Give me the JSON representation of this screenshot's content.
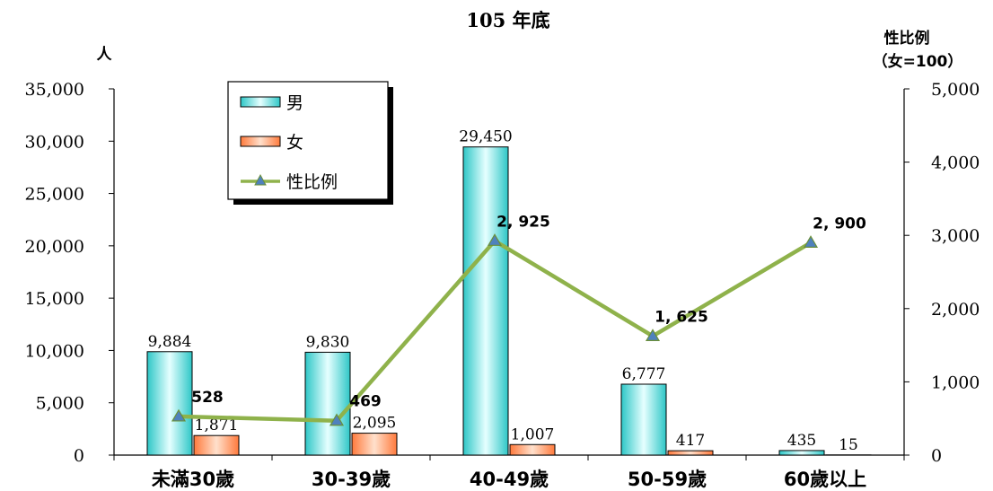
{
  "chart_data": {
    "type": "bar",
    "title": "105 年底",
    "ylabel_left": "人",
    "ylabel_right_line1": "性比例",
    "ylabel_right_line2": "（女=100）",
    "categories": [
      "未滿30歲",
      "30-39歲",
      "40-49歲",
      "50-59歲",
      "60歲以上"
    ],
    "series": [
      {
        "name": "男",
        "type": "bar",
        "axis": "left",
        "values": [
          9884,
          9830,
          29450,
          6777,
          435
        ],
        "labels": [
          "9,884",
          "9,830",
          "29,450",
          "6,777",
          "435"
        ],
        "color": "#66e0e0"
      },
      {
        "name": "女",
        "type": "bar",
        "axis": "left",
        "values": [
          1871,
          2095,
          1007,
          417,
          15
        ],
        "labels": [
          "1,871",
          "2,095",
          "1,007",
          "417",
          "15"
        ],
        "color": "#ff9966"
      },
      {
        "name": "性比例",
        "type": "line",
        "axis": "right",
        "values": [
          528,
          469,
          2925,
          1625,
          2900
        ],
        "labels": [
          "528",
          "469",
          "2, 925",
          "1, 625",
          "2, 900"
        ],
        "color": "#8fb24b",
        "marker_color": "#4f81bd"
      }
    ],
    "ylim_left": [
      0,
      35000
    ],
    "ylim_right": [
      0,
      5000
    ],
    "yticks_left": [
      "0",
      "5,000",
      "10,000",
      "15,000",
      "20,000",
      "25,000",
      "30,000",
      "35,000"
    ],
    "yticks_right": [
      "0",
      "1,000",
      "2,000",
      "3,000",
      "4,000",
      "5,000"
    ],
    "grid": false,
    "legend_position": "top-left"
  }
}
